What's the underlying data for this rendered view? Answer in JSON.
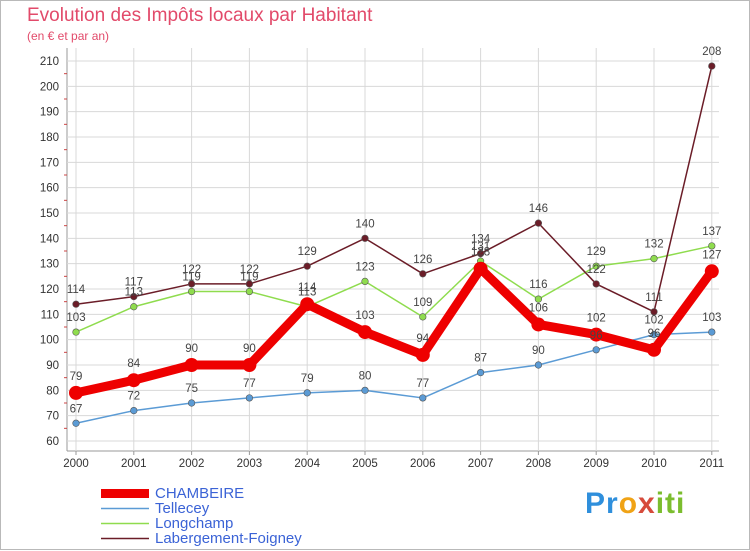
{
  "title": "Evolution des Impôts locaux par Habitant",
  "subtitle": "(en € et par an)",
  "colors": {
    "CHAMBEIRE": "#ee0000",
    "Tellecey": "#5b9bd5",
    "Longchamp": "#8fdc4e",
    "Labergement-Foigney": "#6b1d28",
    "axis_text": "#333333",
    "label_text": "#444444",
    "grid": "#d8d8d8",
    "legend_text": "#3b63d6"
  },
  "logo": {
    "letters": [
      "Pr",
      "o",
      "x",
      "iti"
    ]
  },
  "chart_data": {
    "type": "line",
    "title": "Evolution des Impôts locaux par Habitant",
    "subtitle": "(en € et par an)",
    "xlabel": "",
    "ylabel": "",
    "ylim": [
      60,
      210
    ],
    "ytick_step": 10,
    "grid": true,
    "legend_position": "bottom-left",
    "categories": [
      "2000",
      "2001",
      "2002",
      "2003",
      "2004",
      "2005",
      "2006",
      "2007",
      "2008",
      "2009",
      "2010",
      "2011"
    ],
    "series": [
      {
        "name": "CHAMBEIRE",
        "values": [
          79,
          84,
          90,
          90,
          114,
          103,
          94,
          128,
          106,
          102,
          96,
          127
        ]
      },
      {
        "name": "Tellecey",
        "values": [
          67,
          72,
          75,
          77,
          79,
          80,
          77,
          87,
          90,
          96,
          102,
          103
        ]
      },
      {
        "name": "Longchamp",
        "values": [
          103,
          113,
          119,
          119,
          113,
          123,
          109,
          131,
          116,
          129,
          132,
          137
        ]
      },
      {
        "name": "Labergement-Foigney",
        "values": [
          114,
          117,
          122,
          122,
          129,
          140,
          126,
          134,
          146,
          122,
          111,
          208
        ]
      }
    ],
    "data_labels": [
      {
        "series": "CHAMBEIRE",
        "values": [
          "79",
          "84",
          "90",
          "90",
          "114",
          "103",
          "94",
          "128",
          "106",
          "102",
          "96",
          "127"
        ]
      },
      {
        "series": "Tellecey",
        "values": [
          "67",
          "72",
          "75",
          "77",
          "79",
          "80",
          "77",
          "87",
          "90",
          "96",
          "102",
          "103"
        ]
      },
      {
        "series": "Longchamp",
        "values": [
          "103",
          "113",
          "119",
          "119",
          "113",
          "123",
          "109",
          "131",
          "116",
          "129",
          "132",
          "137"
        ]
      },
      {
        "series": "Labergement-Foigney",
        "values": [
          "114",
          "117",
          "122",
          "122",
          "129",
          "140",
          "126",
          "134",
          "146",
          "122",
          "111",
          "208"
        ]
      }
    ]
  }
}
